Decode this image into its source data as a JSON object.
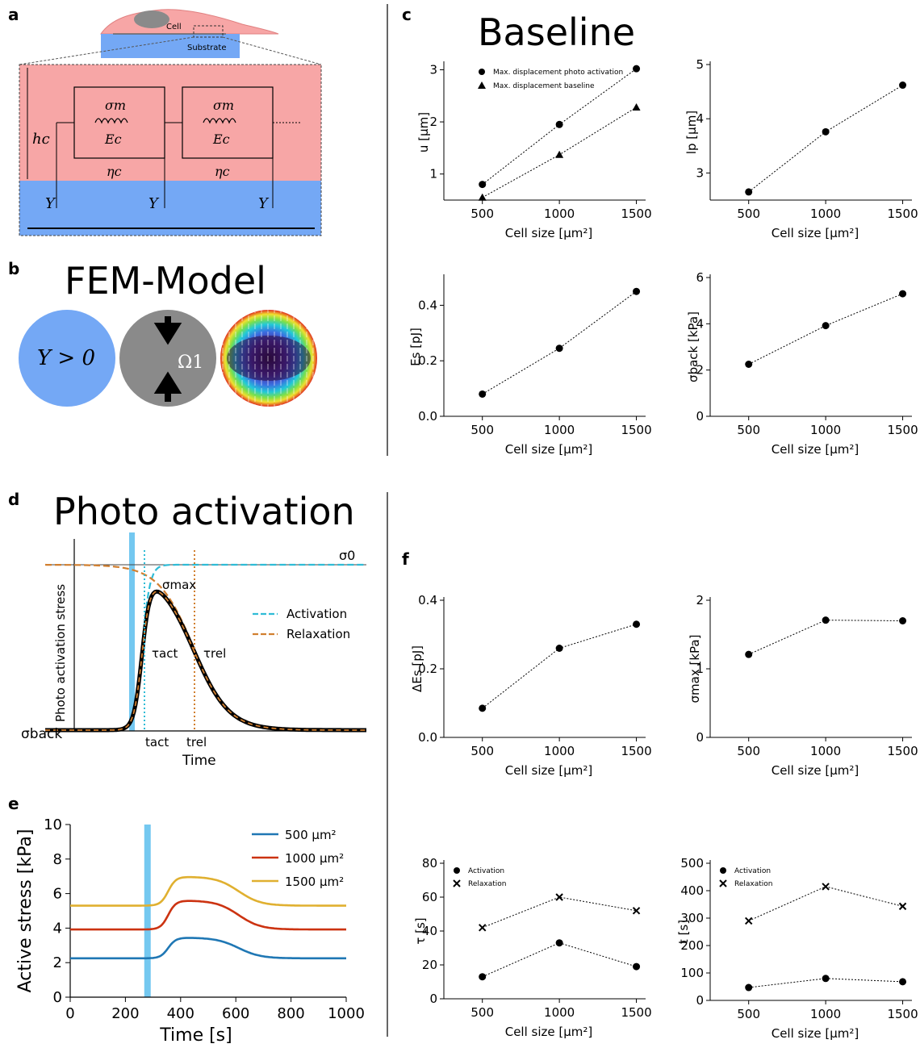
{
  "panels": {
    "a": {
      "label": "a",
      "cell_label": "Cell",
      "substrate_label": "Substrate",
      "sigma_m": "σm",
      "E_c": "Ec",
      "eta_c": "ηc",
      "h_c": "hc",
      "Y": "Y"
    },
    "b": {
      "label": "b",
      "title": "FEM-Model",
      "y_label": "Y > 0",
      "omega_label": "Ω1"
    },
    "c": {
      "label": "c",
      "title": "Baseline"
    },
    "d": {
      "label": "d",
      "title": "Photo activation",
      "ylabel": "Photo activation stress",
      "xlabel": "Time",
      "sigma0": "σ0",
      "sigma_max": "σmax",
      "sigma_back": "σback",
      "tau_act": "τact",
      "tau_rel": "τrel",
      "t_act": "tact",
      "t_rel": "trel",
      "legend": [
        {
          "name": "Activation",
          "color": "#2fbcd6"
        },
        {
          "name": "Relaxation",
          "color": "#d17f2f"
        }
      ]
    },
    "e": {
      "label": "e"
    },
    "f": {
      "label": "f"
    }
  },
  "chart_data": [
    {
      "id": "c1",
      "type": "scatter",
      "x": [
        500,
        1000,
        1500
      ],
      "series": [
        {
          "name": "Max. displacement photo activation",
          "marker": "circle",
          "values": [
            0.8,
            1.95,
            3.02
          ]
        },
        {
          "name": "Max. displacement baseline",
          "marker": "triangle",
          "values": [
            0.55,
            1.37,
            2.28
          ]
        }
      ],
      "xlabel": "Cell size [μm²]",
      "ylabel": "u [μm]",
      "xlim": [
        250,
        1560
      ],
      "ylim": [
        0.5,
        3.1
      ],
      "xticks": [
        500,
        1000,
        1500
      ],
      "yticks": [
        1,
        2,
        3
      ]
    },
    {
      "id": "c2",
      "type": "scatter",
      "x": [
        500,
        1000,
        1500
      ],
      "series": [
        {
          "marker": "circle",
          "values": [
            2.65,
            3.76,
            4.62
          ]
        }
      ],
      "xlabel": "Cell size [μm²]",
      "ylabel": "lp [μm]",
      "xlim": [
        250,
        1560
      ],
      "ylim": [
        2.5,
        5.0
      ],
      "xticks": [
        500,
        1000,
        1500
      ],
      "yticks": [
        3,
        4,
        5
      ]
    },
    {
      "id": "c3",
      "type": "scatter",
      "x": [
        500,
        1000,
        1500
      ],
      "series": [
        {
          "marker": "circle",
          "values": [
            0.08,
            0.245,
            0.45
          ]
        }
      ],
      "xlabel": "Cell size [μm²]",
      "ylabel": "Es [pJ]",
      "xlim": [
        250,
        1560
      ],
      "ylim": [
        0.0,
        0.5
      ],
      "xticks": [
        500,
        1000,
        1500
      ],
      "yticks": [
        0.0,
        0.2,
        0.4
      ]
    },
    {
      "id": "c4",
      "type": "scatter",
      "x": [
        500,
        1000,
        1500
      ],
      "series": [
        {
          "marker": "circle",
          "values": [
            2.25,
            3.92,
            5.3
          ]
        }
      ],
      "xlabel": "Cell size [μm²]",
      "ylabel": "σback [kPa]",
      "xlim": [
        250,
        1560
      ],
      "ylim": [
        0,
        6
      ],
      "xticks": [
        500,
        1000,
        1500
      ],
      "yticks": [
        0,
        2,
        4,
        6
      ]
    },
    {
      "id": "e",
      "type": "line",
      "series": [
        {
          "name": "500 μm²",
          "color": "#1f77b4",
          "base": 2.25,
          "peak": 3.45
        },
        {
          "name": "1000 μm²",
          "color": "#cc3311",
          "base": 3.92,
          "peak": 5.6
        },
        {
          "name": "1500 μm²",
          "color": "#e0b030",
          "base": 5.3,
          "peak": 6.98
        }
      ],
      "activation_time": 280,
      "xlabel": "Time [s]",
      "ylabel": "Active stress [kPa]",
      "xlim": [
        0,
        1000
      ],
      "ylim": [
        0,
        10
      ],
      "xticks": [
        0,
        200,
        400,
        600,
        800,
        1000
      ],
      "yticks": [
        0,
        2,
        4,
        6,
        8,
        10
      ]
    },
    {
      "id": "f1",
      "type": "scatter",
      "x": [
        500,
        1000,
        1500
      ],
      "series": [
        {
          "marker": "circle",
          "values": [
            0.085,
            0.26,
            0.33
          ]
        }
      ],
      "xlabel": "Cell size [μm²]",
      "ylabel": "ΔEs [pJ]",
      "xlim": [
        250,
        1560
      ],
      "ylim": [
        0.0,
        0.4
      ],
      "xticks": [
        500,
        1000,
        1500
      ],
      "yticks": [
        0.0,
        0.2,
        0.4
      ]
    },
    {
      "id": "f2",
      "type": "scatter",
      "x": [
        500,
        1000,
        1500
      ],
      "series": [
        {
          "marker": "circle",
          "values": [
            1.21,
            1.71,
            1.7
          ]
        }
      ],
      "xlabel": "Cell size [μm²]",
      "ylabel": "σmax [kPa]",
      "xlim": [
        250,
        1560
      ],
      "ylim": [
        0,
        2
      ],
      "xticks": [
        500,
        1000,
        1500
      ],
      "yticks": [
        0,
        1,
        2
      ]
    },
    {
      "id": "f3",
      "type": "scatter",
      "x": [
        500,
        1000,
        1500
      ],
      "series": [
        {
          "name": "Activation",
          "marker": "circle",
          "values": [
            13,
            33,
            19
          ]
        },
        {
          "name": "Relaxation",
          "marker": "x",
          "values": [
            42,
            60,
            52
          ]
        }
      ],
      "xlabel": "Cell size [μm²]",
      "ylabel": "τ [s]",
      "xlim": [
        250,
        1560
      ],
      "ylim": [
        0,
        80
      ],
      "xticks": [
        500,
        1000,
        1500
      ],
      "yticks": [
        0,
        20,
        40,
        60,
        80
      ]
    },
    {
      "id": "f4",
      "type": "scatter",
      "x": [
        500,
        1000,
        1500
      ],
      "series": [
        {
          "name": "Activation",
          "marker": "circle",
          "values": [
            47,
            80,
            68
          ]
        },
        {
          "name": "Relaxation",
          "marker": "x",
          "values": [
            290,
            415,
            343
          ]
        }
      ],
      "xlabel": "Cell size [μm²]",
      "ylabel": "t [s]",
      "xlim": [
        250,
        1560
      ],
      "ylim": [
        0,
        500
      ],
      "xticks": [
        500,
        1000,
        1500
      ],
      "yticks": [
        0,
        100,
        200,
        300,
        400,
        500
      ]
    }
  ]
}
